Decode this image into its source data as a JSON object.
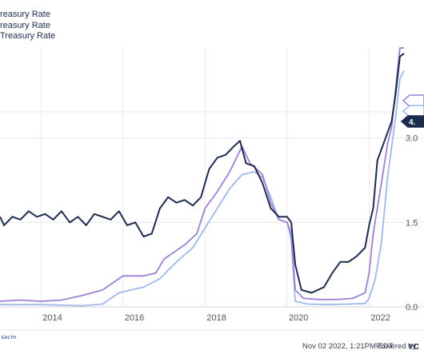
{
  "chart_data": {
    "type": "line",
    "legend_placement": "top-left",
    "grid": true,
    "xlim": [
      2013.0,
      2022.85
    ],
    "ylim": [
      0.0,
      4.6
    ],
    "x_ticks": [
      {
        "label": "2014",
        "value": 2014.0
      },
      {
        "label": "2016",
        "value": 2016.0
      },
      {
        "label": "2018",
        "value": 2018.0
      },
      {
        "label": "2020",
        "value": 2020.0
      },
      {
        "label": "2022",
        "value": 2022.0
      }
    ],
    "y_ticks": [
      {
        "label": "0.0",
        "value": 0.0
      },
      {
        "label": "1.5",
        "value": 1.5
      },
      {
        "label": "3.0",
        "value": 3.0
      },
      {
        "label": "4.",
        "value": 4.5
      }
    ],
    "series": [
      {
        "name": "reasury Rate",
        "color": "#1d2b4f",
        "end_label": "4.",
        "points": [
          [
            2013.0,
            1.6
          ],
          [
            2013.1,
            1.45
          ],
          [
            2013.3,
            1.6
          ],
          [
            2013.5,
            1.55
          ],
          [
            2013.7,
            1.7
          ],
          [
            2013.9,
            1.6
          ],
          [
            2014.1,
            1.65
          ],
          [
            2014.3,
            1.55
          ],
          [
            2014.5,
            1.7
          ],
          [
            2014.7,
            1.5
          ],
          [
            2014.9,
            1.6
          ],
          [
            2015.1,
            1.45
          ],
          [
            2015.3,
            1.65
          ],
          [
            2015.5,
            1.6
          ],
          [
            2015.7,
            1.55
          ],
          [
            2015.9,
            1.7
          ],
          [
            2016.1,
            1.45
          ],
          [
            2016.3,
            1.5
          ],
          [
            2016.5,
            1.25
          ],
          [
            2016.7,
            1.3
          ],
          [
            2016.9,
            1.75
          ],
          [
            2017.1,
            1.95
          ],
          [
            2017.3,
            1.85
          ],
          [
            2017.5,
            1.9
          ],
          [
            2017.7,
            1.8
          ],
          [
            2017.9,
            1.95
          ],
          [
            2018.1,
            2.45
          ],
          [
            2018.3,
            2.65
          ],
          [
            2018.5,
            2.7
          ],
          [
            2018.7,
            2.85
          ],
          [
            2018.85,
            2.95
          ],
          [
            2019.0,
            2.55
          ],
          [
            2019.2,
            2.5
          ],
          [
            2019.4,
            2.2
          ],
          [
            2019.6,
            1.75
          ],
          [
            2019.8,
            1.6
          ],
          [
            2020.0,
            1.6
          ],
          [
            2020.1,
            1.5
          ],
          [
            2020.2,
            0.75
          ],
          [
            2020.35,
            0.3
          ],
          [
            2020.6,
            0.25
          ],
          [
            2020.9,
            0.35
          ],
          [
            2021.1,
            0.6
          ],
          [
            2021.3,
            0.8
          ],
          [
            2021.5,
            0.8
          ],
          [
            2021.7,
            0.9
          ],
          [
            2021.9,
            1.05
          ],
          [
            2022.0,
            1.45
          ],
          [
            2022.1,
            1.75
          ],
          [
            2022.2,
            2.6
          ],
          [
            2022.3,
            2.8
          ],
          [
            2022.45,
            3.1
          ],
          [
            2022.55,
            3.3
          ],
          [
            2022.65,
            3.8
          ],
          [
            2022.75,
            4.45
          ],
          [
            2022.85,
            4.5
          ]
        ]
      },
      {
        "name": "reasury Rate",
        "color": "#9c7fd6",
        "end_label": "",
        "points": [
          [
            2013.0,
            0.1
          ],
          [
            2013.5,
            0.12
          ],
          [
            2014.0,
            0.1
          ],
          [
            2014.5,
            0.12
          ],
          [
            2015.0,
            0.2
          ],
          [
            2015.5,
            0.3
          ],
          [
            2016.0,
            0.55
          ],
          [
            2016.5,
            0.55
          ],
          [
            2016.8,
            0.6
          ],
          [
            2017.0,
            0.85
          ],
          [
            2017.5,
            1.1
          ],
          [
            2017.8,
            1.3
          ],
          [
            2018.0,
            1.75
          ],
          [
            2018.3,
            2.05
          ],
          [
            2018.6,
            2.4
          ],
          [
            2018.9,
            2.85
          ],
          [
            2019.1,
            2.55
          ],
          [
            2019.4,
            2.35
          ],
          [
            2019.6,
            1.85
          ],
          [
            2019.8,
            1.55
          ],
          [
            2020.0,
            1.5
          ],
          [
            2020.1,
            1.3
          ],
          [
            2020.2,
            0.3
          ],
          [
            2020.4,
            0.15
          ],
          [
            2020.8,
            0.13
          ],
          [
            2021.2,
            0.13
          ],
          [
            2021.6,
            0.15
          ],
          [
            2021.9,
            0.25
          ],
          [
            2022.0,
            0.6
          ],
          [
            2022.1,
            1.3
          ],
          [
            2022.3,
            2.2
          ],
          [
            2022.45,
            2.9
          ],
          [
            2022.55,
            3.2
          ],
          [
            2022.65,
            3.9
          ],
          [
            2022.75,
            4.6
          ],
          [
            2022.85,
            4.6
          ]
        ]
      },
      {
        "name": "Treasury Rate",
        "color": "#9fb8ea",
        "end_label": "",
        "points": [
          [
            2013.0,
            0.04
          ],
          [
            2014.0,
            0.04
          ],
          [
            2015.0,
            0.02
          ],
          [
            2015.5,
            0.05
          ],
          [
            2015.9,
            0.25
          ],
          [
            2016.5,
            0.35
          ],
          [
            2016.9,
            0.5
          ],
          [
            2017.3,
            0.8
          ],
          [
            2017.7,
            1.05
          ],
          [
            2018.0,
            1.4
          ],
          [
            2018.3,
            1.75
          ],
          [
            2018.6,
            2.1
          ],
          [
            2018.9,
            2.35
          ],
          [
            2019.2,
            2.4
          ],
          [
            2019.4,
            2.3
          ],
          [
            2019.6,
            1.95
          ],
          [
            2019.8,
            1.55
          ],
          [
            2020.0,
            1.5
          ],
          [
            2020.1,
            1.2
          ],
          [
            2020.2,
            0.1
          ],
          [
            2020.5,
            0.05
          ],
          [
            2021.0,
            0.04
          ],
          [
            2021.5,
            0.05
          ],
          [
            2021.9,
            0.06
          ],
          [
            2022.0,
            0.15
          ],
          [
            2022.15,
            0.5
          ],
          [
            2022.3,
            1.15
          ],
          [
            2022.45,
            2.3
          ],
          [
            2022.55,
            2.85
          ],
          [
            2022.65,
            3.4
          ],
          [
            2022.75,
            4.05
          ],
          [
            2022.85,
            4.2
          ]
        ]
      }
    ]
  },
  "footer": {
    "timestamp": "Nov 02 2022, 1:21PM EDT.",
    "powered_by": "Powered by",
    "brand": "YC",
    "logo_text": "EALTH"
  }
}
